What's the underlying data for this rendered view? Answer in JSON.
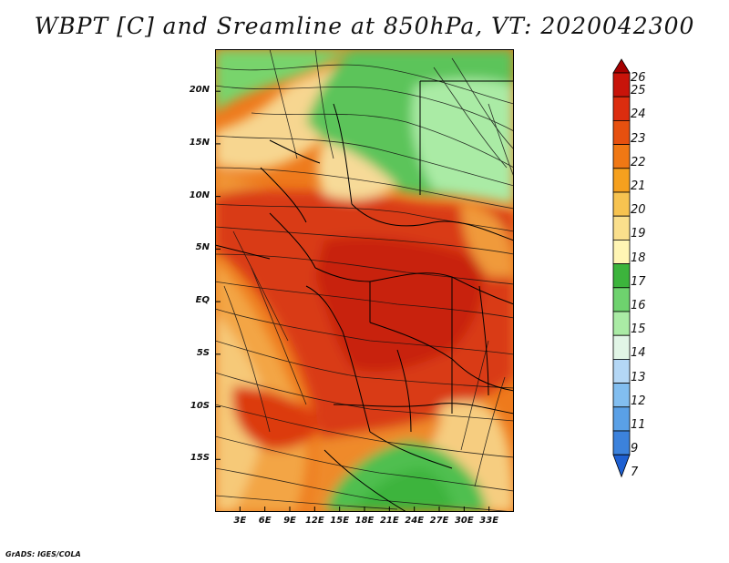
{
  "title": "WBPT [C] and Sreamline at 850hPa, VT: 2020042300",
  "footer": "GrADS: IGES/COLA",
  "map": {
    "variable": "Wet-bulb potential temperature",
    "units": "C",
    "level": "850hPa",
    "valid_time": "2020042300",
    "lon_range": [
      0,
      36
    ],
    "lat_range": [
      -20,
      24
    ],
    "lat_ticks": [
      {
        "value": 20,
        "label": "20N"
      },
      {
        "value": 15,
        "label": "15N"
      },
      {
        "value": 10,
        "label": "10N"
      },
      {
        "value": 5,
        "label": "5N"
      },
      {
        "value": 0,
        "label": "EQ"
      },
      {
        "value": -5,
        "label": "5S"
      },
      {
        "value": -10,
        "label": "10S"
      },
      {
        "value": -15,
        "label": "15S"
      }
    ],
    "lon_ticks": [
      {
        "value": 3,
        "label": "3E"
      },
      {
        "value": 6,
        "label": "6E"
      },
      {
        "value": 9,
        "label": "9E"
      },
      {
        "value": 12,
        "label": "12E"
      },
      {
        "value": 15,
        "label": "15E"
      },
      {
        "value": 18,
        "label": "18E"
      },
      {
        "value": 21,
        "label": "21E"
      },
      {
        "value": 24,
        "label": "24E"
      },
      {
        "value": 27,
        "label": "27E"
      },
      {
        "value": 30,
        "label": "30E"
      },
      {
        "value": 33,
        "label": "33E"
      }
    ]
  },
  "colorbar": {
    "labels": [
      "26",
      "25",
      "24",
      "23",
      "22",
      "21",
      "20",
      "19",
      "18",
      "17",
      "16",
      "15",
      "14",
      "13",
      "12",
      "11",
      "9",
      "7"
    ],
    "colors": [
      "#a50000",
      "#c8140a",
      "#dc2d0f",
      "#e6500f",
      "#f07814",
      "#f5a01e",
      "#f7c350",
      "#fadf8c",
      "#fff5b4",
      "#3cb43c",
      "#6ed26e",
      "#aaeba5",
      "#e1f5e6",
      "#b4d7f5",
      "#82bef0",
      "#5aa0e6",
      "#3c82dc",
      "#1e60d2"
    ]
  },
  "regions": [
    {
      "name": "sahel-north-green",
      "color": "#6ed26e"
    },
    {
      "name": "northeast-pale-green",
      "color": "#aaeba5"
    },
    {
      "name": "southern-green",
      "color": "#5ec45e"
    },
    {
      "name": "central-red",
      "color": "#d93a12"
    }
  ]
}
